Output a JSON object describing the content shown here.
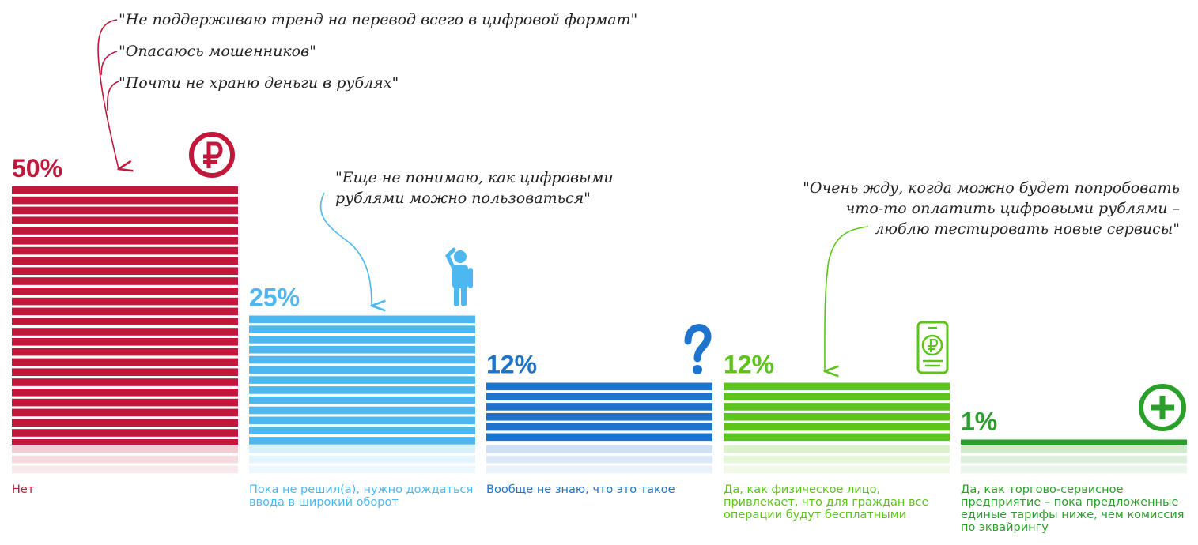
{
  "chart_data": {
    "type": "bar",
    "categories": [
      "Нет",
      "Пока не решил(а), нужно дождаться ввода в широкий оборот",
      "Вообще не знаю, что это такое",
      "Да, как физическое лицо, привлекает, что для граждан все операции будут бесплатными",
      "Да, как торгово-сервисное предприятие – пока предложенные единые тарифы ниже, чем комиссия по эквайрингу"
    ],
    "values": [
      50,
      25,
      12,
      12,
      1
    ],
    "value_labels": [
      "50%",
      "25%",
      "12%",
      "12%",
      "1%"
    ],
    "colors": [
      "#c0173a",
      "#4db8f0",
      "#1e74cc",
      "#5cc41a",
      "#2aa02a"
    ],
    "icons": [
      "ruble-circle-icon",
      "thinking-person-icon",
      "question-mark-icon",
      "phone-ruble-icon",
      "plus-circle-icon"
    ],
    "annotations": [
      {
        "bar": 0,
        "lines": [
          "\"Не поддерживаю тренд на перевод всего в цифровой формат\""
        ]
      },
      {
        "bar": 0,
        "lines": [
          "\"Опасаюсь мошенников\""
        ]
      },
      {
        "bar": 0,
        "lines": [
          "\"Почти не храню деньги в рублях\""
        ]
      },
      {
        "bar": 1,
        "lines": [
          "\"Еще не понимаю, как цифровыми",
          "рублями можно пользоваться\""
        ]
      },
      {
        "bar": 3,
        "lines": [
          "\"Очень жду, когда можно будет попробовать",
          "что-то оплатить цифровыми рублями –",
          "люблю тестировать новые сервисы\""
        ]
      }
    ],
    "grid": false,
    "legend": "none"
  }
}
